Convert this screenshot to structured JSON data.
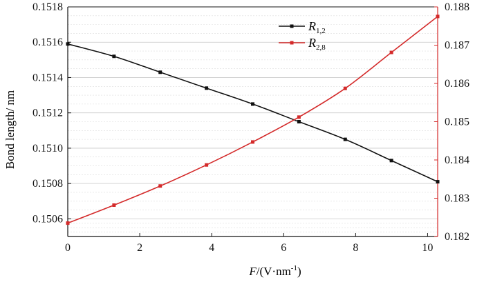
{
  "chart_data": {
    "type": "line",
    "xlabel_italic": "F",
    "xlabel_rest": "/(V·nm",
    "xlabel_sup": "-1",
    "xlabel_close": ")",
    "ylabel": "Bond length/ nm",
    "xlim": [
      0,
      10.28
    ],
    "ylim_left": [
      0.1505,
      0.1518
    ],
    "ylim_right": [
      0.182,
      0.188
    ],
    "xticks": [
      "0",
      "2",
      "4",
      "6",
      "8",
      "10"
    ],
    "xtick_values": [
      0,
      2,
      4,
      6,
      8,
      10
    ],
    "yticks_left": [
      "0.1506",
      "0.1508",
      "0.1510",
      "0.1512",
      "0.1514",
      "0.1516",
      "0.1518"
    ],
    "yticks_left_values": [
      0.1506,
      0.1508,
      0.151,
      0.1512,
      0.1514,
      0.1516,
      0.1518
    ],
    "yticks_right": [
      "0.182",
      "0.183",
      "0.184",
      "0.185",
      "0.186",
      "0.187",
      "0.188"
    ],
    "yticks_right_values": [
      0.182,
      0.183,
      0.184,
      0.185,
      0.186,
      0.187,
      0.188
    ],
    "grid": "horizontal",
    "legend_position": "top-center",
    "series": [
      {
        "name_main": "R",
        "name_sub": "1,2",
        "axis": "left",
        "color": "#111111",
        "x": [
          0,
          1.285,
          2.57,
          3.855,
          5.14,
          6.425,
          7.71,
          8.995,
          10.28
        ],
        "y": [
          0.15159,
          0.15152,
          0.15143,
          0.15134,
          0.15125,
          0.15115,
          0.15105,
          0.15093,
          0.15081
        ]
      },
      {
        "name_main": "R",
        "name_sub": "2,8",
        "axis": "right",
        "color": "#d42a2a",
        "x": [
          0,
          1.285,
          2.57,
          3.855,
          5.14,
          6.425,
          7.71,
          8.995,
          10.28
        ],
        "y": [
          0.18235,
          0.18282,
          0.18332,
          0.18387,
          0.18447,
          0.18512,
          0.18587,
          0.18681,
          0.18775
        ]
      }
    ]
  }
}
